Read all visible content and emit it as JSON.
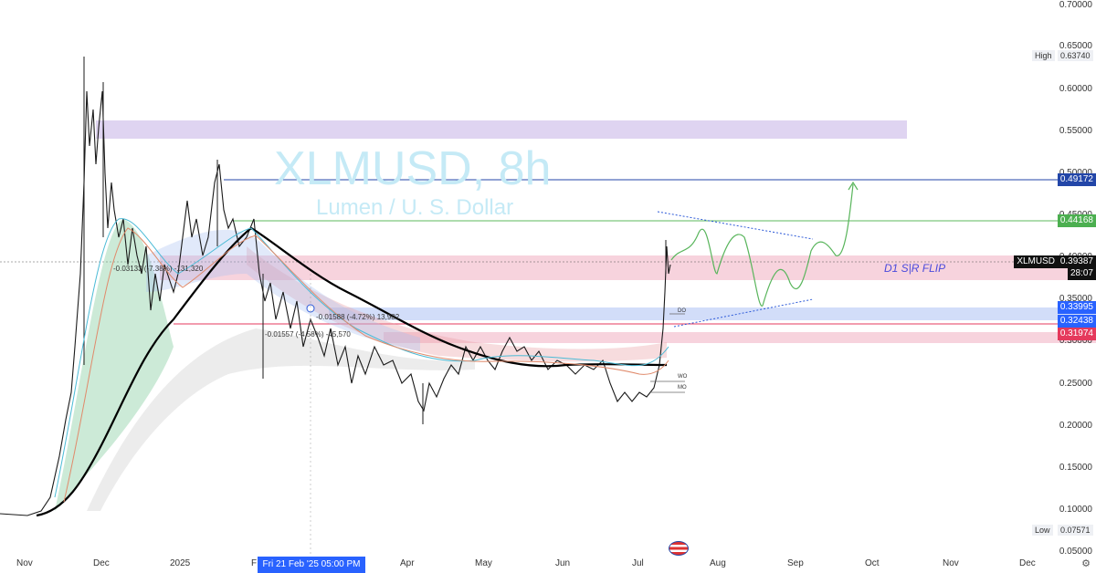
{
  "watermark": {
    "title": "XLMUSD, 8h",
    "subtitle": "Lumen / U. S. Dollar"
  },
  "y_axis": {
    "ticks": [
      "0.70000",
      "0.65000",
      "0.60000",
      "0.55000",
      "0.50000",
      "0.45000",
      "0.40000",
      "0.35000",
      "0.30000",
      "0.25000",
      "0.20000",
      "0.15000",
      "0.10000",
      "0.05000"
    ],
    "high_label": "High",
    "high_value": "0.63740",
    "low_label": "Low",
    "low_value": "0.07571"
  },
  "x_axis": {
    "ticks": [
      "Nov",
      "Dec",
      "2025",
      "F",
      "Apr",
      "May",
      "Jun",
      "Jul",
      "Aug",
      "Sep",
      "Oct",
      "Nov",
      "Dec"
    ]
  },
  "crosshair_date": "Fri 21 Feb '25  05:00 PM",
  "price_tags": {
    "resistance_1": "0.49172",
    "resistance_2": "0.44168",
    "symbol": "XLMUSD",
    "current": "0.39387",
    "countdown": "28:07",
    "support_1": "0.33995",
    "support_2": "0.32438",
    "support_3": "0.31974"
  },
  "annotations": {
    "flip_label": "D1 S|R FLIP",
    "do_label": "DO",
    "wo_label": "WO",
    "mo_label": "MO",
    "measure_1": "-0.03133 (-7.38%) -131,320",
    "measure_2": "-0.01557 (-4.58%) -45,570",
    "measure_3": "-0.01588 (-4.72%) 13,982"
  },
  "colors": {
    "accent": "#2962ff",
    "supply_zone": "#d7c8ee",
    "flip_zone": "#f6c9d6",
    "support_zone": "#c9d6f8",
    "resistance_line": "#2346a8",
    "green_line": "#4caf50",
    "red_line": "#e5395c",
    "candle": "#1a1a1a",
    "ma_long": "#000000"
  },
  "chart_data": {
    "type": "line",
    "ylim": [
      0.05,
      0.7
    ],
    "series": [
      {
        "x": [
          "Nov",
          "Dec",
          "2025",
          "F",
          "Apr",
          "May",
          "Jun",
          "Jul"
        ],
        "values": [
          0.09,
          0.45,
          0.4,
          0.38,
          0.27,
          0.29,
          0.26,
          0.39387
        ]
      }
    ]
  },
  "clock_icon": "gear-icon",
  "flag_icon": "us-flag-icon"
}
